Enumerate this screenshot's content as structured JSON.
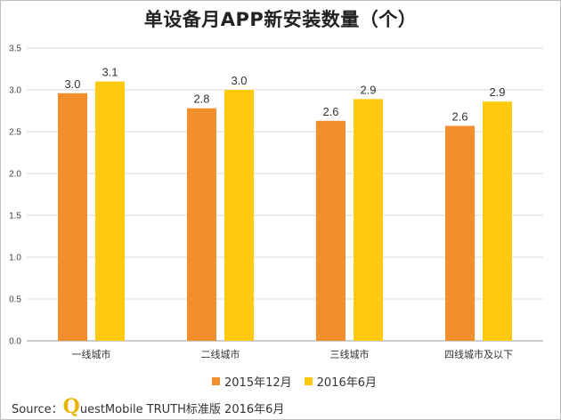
{
  "chart_data": {
    "type": "bar",
    "title": "单设备月APP新安装数量（个）",
    "categories": [
      "一线城市",
      "二线城市",
      "三线城市",
      "四线城市及以下"
    ],
    "series": [
      {
        "name": "2015年12月",
        "color": "#f28e2b",
        "values": [
          2.96,
          2.78,
          2.63,
          2.57
        ],
        "labels": [
          "3.0",
          "2.8",
          "2.6",
          "2.6"
        ]
      },
      {
        "name": "2016年6月",
        "color": "#ffc90e",
        "values": [
          3.1,
          3.0,
          2.89,
          2.86
        ],
        "labels": [
          "3.1",
          "3.0",
          "2.9",
          "2.9"
        ]
      }
    ],
    "ylim": [
      0,
      3.5
    ],
    "yticks": [
      "0.0",
      "0.5",
      "1.0",
      "1.5",
      "2.0",
      "2.5",
      "3.0",
      "3.5"
    ],
    "grid": true,
    "legend_position": "bottom"
  },
  "source": {
    "prefix": "Source：",
    "brand_initial": "Q",
    "brand_rest": "uestMobile TRUTH标准版 2016年6月"
  }
}
